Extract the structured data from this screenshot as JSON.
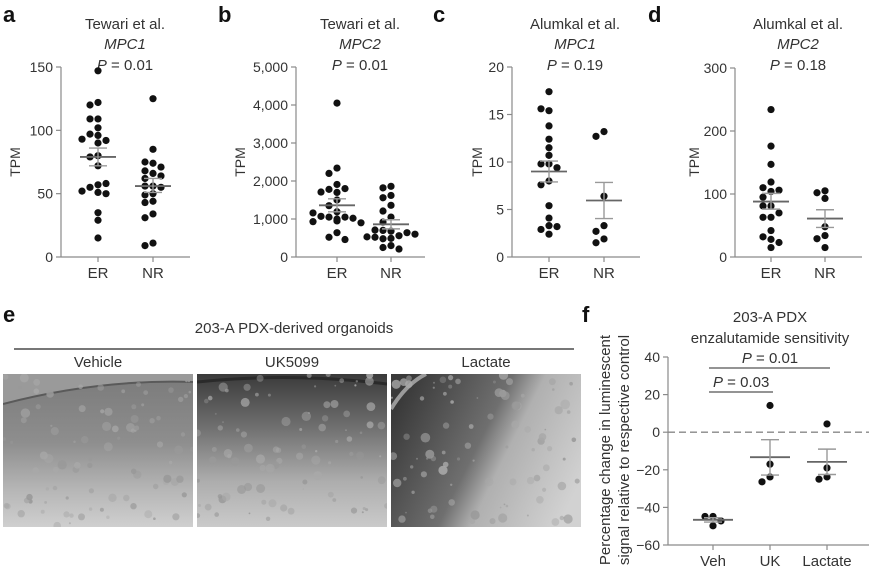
{
  "panels": {
    "a": "a",
    "b": "b",
    "c": "c",
    "d": "d",
    "e": "e",
    "f": "f"
  },
  "organoids": {
    "title": "203-A PDX-derived organoids",
    "labels": [
      "Vehicle",
      "UK5099",
      "Lactate"
    ]
  },
  "colors": {
    "dot": "#111111",
    "axis": "#8a8a8a",
    "text": "#333333",
    "mean_line": "#666666",
    "error_bar": "#999999",
    "dashed_zero": "#888888"
  },
  "chart_data": [
    {
      "id": "a",
      "type": "scatter",
      "title": [
        "Tewari et al.",
        "MPC1",
        "P = 0.01"
      ],
      "ylabel": "TPM",
      "categories": [
        "ER",
        "NR"
      ],
      "ylim": [
        0,
        150
      ],
      "yticks": [
        0,
        50,
        100,
        150
      ],
      "ytick_labels": [
        "0",
        "50",
        "100",
        "150"
      ],
      "series": [
        {
          "name": "ER",
          "values": [
            147,
            122,
            120,
            109,
            109,
            102,
            97,
            96,
            92,
            93,
            90,
            80,
            79,
            72,
            57,
            55,
            58,
            51,
            50,
            52,
            35,
            29,
            15
          ],
          "mean": 79,
          "sem_low": 72,
          "sem_high": 86
        },
        {
          "name": "NR",
          "values": [
            125,
            85,
            74,
            75,
            71,
            66,
            68,
            64,
            62,
            56,
            56,
            55,
            50,
            49,
            44,
            43,
            34,
            31,
            11,
            9
          ],
          "mean": 56,
          "sem_low": 51,
          "sem_high": 62
        }
      ]
    },
    {
      "id": "b",
      "type": "scatter",
      "title": [
        "Tewari et al.",
        "MPC2",
        "P = 0.01"
      ],
      "ylabel": "TPM",
      "categories": [
        "ER",
        "NR"
      ],
      "ylim": [
        0,
        5000
      ],
      "yticks": [
        0,
        1000,
        2000,
        3000,
        4000,
        5000
      ],
      "ytick_labels": [
        "0",
        "1,000",
        "2,000",
        "3,000",
        "4,000",
        "5,000"
      ],
      "series": [
        {
          "name": "ER",
          "values": [
            4050,
            2340,
            2200,
            1910,
            1780,
            1800,
            1700,
            1710,
            1500,
            1350,
            1190,
            1000,
            1050,
            1050,
            1070,
            1020,
            1160,
            930,
            900,
            960,
            950,
            640,
            520,
            460
          ],
          "mean": 1360,
          "sem_low": 1190,
          "sem_high": 1530
        },
        {
          "name": "NR",
          "values": [
            1860,
            1820,
            1620,
            1560,
            1360,
            1210,
            1050,
            920,
            680,
            700,
            560,
            520,
            640,
            530,
            490,
            480,
            710,
            600,
            300,
            250,
            210
          ],
          "mean": 860,
          "sem_low": 740,
          "sem_high": 980
        }
      ]
    },
    {
      "id": "c",
      "type": "scatter",
      "title": [
        "Alumkal et al.",
        "MPC1",
        "P = 0.19"
      ],
      "ylabel": "TPM",
      "categories": [
        "ER",
        "NR"
      ],
      "ylim": [
        0,
        20
      ],
      "yticks": [
        0,
        5,
        10,
        15,
        20
      ],
      "ytick_labels": [
        "0",
        "5",
        "10",
        "15",
        "20"
      ],
      "series": [
        {
          "name": "ER",
          "values": [
            17.4,
            15.4,
            15.6,
            13.8,
            12.4,
            11.5,
            10.7,
            9.8,
            9.8,
            9.4,
            8.0,
            7.6,
            5.4,
            4.1,
            3.3,
            2.9,
            3.2,
            2.4
          ],
          "mean": 9.0,
          "sem_low": 7.9,
          "sem_high": 10.1
        },
        {
          "name": "NR",
          "values": [
            13.2,
            12.7,
            6.4,
            3.3,
            2.7,
            1.9,
            1.5
          ],
          "mean": 5.95,
          "sem_low": 4.05,
          "sem_high": 7.85
        }
      ]
    },
    {
      "id": "d",
      "type": "scatter",
      "title": [
        "Alumkal et al.",
        "MPC2",
        "P = 0.18"
      ],
      "ylabel": "TPM",
      "categories": [
        "ER",
        "NR"
      ],
      "ylim": [
        0,
        300
      ],
      "yticks": [
        0,
        100,
        200,
        300
      ],
      "ytick_labels": [
        "0",
        "100",
        "200",
        "300"
      ],
      "series": [
        {
          "name": "ER",
          "values": [
            234,
            176,
            147,
            119,
            104,
            110,
            106,
            95,
            81,
            81,
            70,
            63,
            63,
            42,
            28,
            32,
            23,
            15
          ],
          "mean": 88,
          "sem_low": 76,
          "sem_high": 101
        },
        {
          "name": "NR",
          "values": [
            105,
            102,
            93,
            48,
            34,
            29,
            15
          ],
          "mean": 61,
          "sem_low": 47,
          "sem_high": 75
        }
      ]
    },
    {
      "id": "f",
      "type": "scatter",
      "title": [
        "203-A PDX",
        "enzalutamide sensitivity"
      ],
      "ylabel": [
        "Percentage change in luminescent",
        "signal relative to respective control"
      ],
      "categories": [
        "Veh",
        "UK",
        "Lactate"
      ],
      "ylim": [
        -60,
        40
      ],
      "yticks": [
        -60,
        -40,
        -20,
        0,
        20,
        40
      ],
      "ytick_labels": [
        "−60",
        "−40",
        "−20",
        "0",
        "20",
        "40"
      ],
      "reference_line": {
        "y": 0,
        "style": "dashed"
      },
      "significance": [
        {
          "from": "Veh",
          "to": "Lactate",
          "label": "P = 0.01"
        },
        {
          "from": "Veh",
          "to": "UK",
          "label": "P = 0.03"
        }
      ],
      "series": [
        {
          "name": "Veh",
          "values": [
            -44.8,
            -44.8,
            -47.2,
            -49.8
          ],
          "mean": -46.6,
          "sem_low": -47.8,
          "sem_high": -45.5
        },
        {
          "name": "UK",
          "values": [
            14.2,
            -17,
            -23.8,
            -26.4
          ],
          "mean": -13.3,
          "sem_low": -22.8,
          "sem_high": -4
        },
        {
          "name": "Lactate",
          "values": [
            4.4,
            -19,
            -23.8,
            -25
          ],
          "mean": -15.8,
          "sem_low": -22.5,
          "sem_high": -9
        }
      ]
    }
  ]
}
